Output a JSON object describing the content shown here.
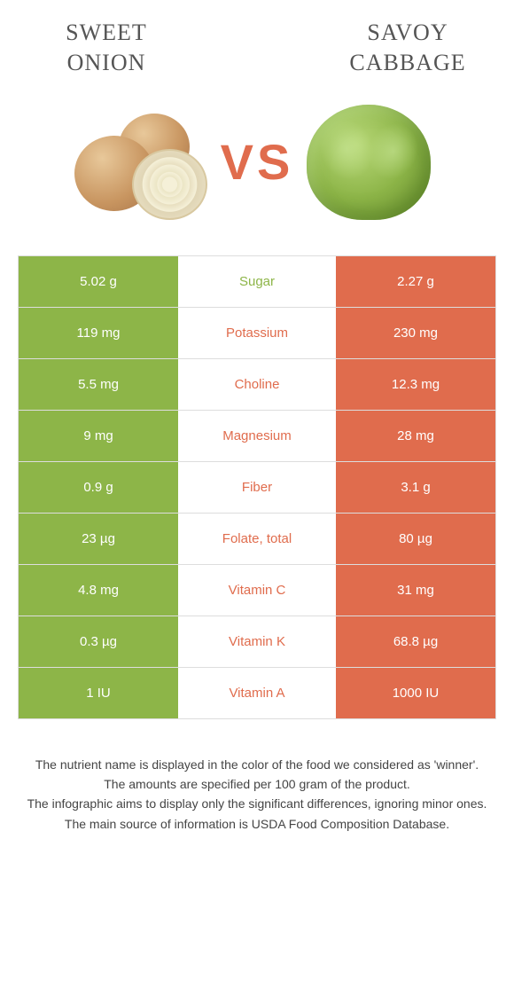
{
  "colors": {
    "left": "#8db548",
    "right": "#e06c4d",
    "vs": "#e06c4d",
    "title": "#555555",
    "foot": "#444444",
    "border": "#dddddd",
    "bg": "#ffffff"
  },
  "food_left": {
    "name_line1": "Sweet",
    "name_line2": "onion"
  },
  "food_right": {
    "name_line1": "Savoy",
    "name_line2": "cabbage"
  },
  "vs_label": "VS",
  "rows": [
    {
      "left": "5.02 g",
      "label": "Sugar",
      "right": "2.27 g",
      "winner": "left"
    },
    {
      "left": "119 mg",
      "label": "Potassium",
      "right": "230 mg",
      "winner": "right"
    },
    {
      "left": "5.5 mg",
      "label": "Choline",
      "right": "12.3 mg",
      "winner": "right"
    },
    {
      "left": "9 mg",
      "label": "Magnesium",
      "right": "28 mg",
      "winner": "right"
    },
    {
      "left": "0.9 g",
      "label": "Fiber",
      "right": "3.1 g",
      "winner": "right"
    },
    {
      "left": "23 µg",
      "label": "Folate, total",
      "right": "80 µg",
      "winner": "right"
    },
    {
      "left": "4.8 mg",
      "label": "Vitamin C",
      "right": "31 mg",
      "winner": "right"
    },
    {
      "left": "0.3 µg",
      "label": "Vitamin K",
      "right": "68.8 µg",
      "winner": "right"
    },
    {
      "left": "1 IU",
      "label": "Vitamin A",
      "right": "1000 IU",
      "winner": "right"
    }
  ],
  "footnotes": [
    "The nutrient name is displayed in the color of the food we considered as 'winner'.",
    "The amounts are specified per 100 gram of the product.",
    "The infographic aims to display only the significant differences, ignoring minor ones.",
    "The main source of information is USDA Food Composition Database."
  ]
}
